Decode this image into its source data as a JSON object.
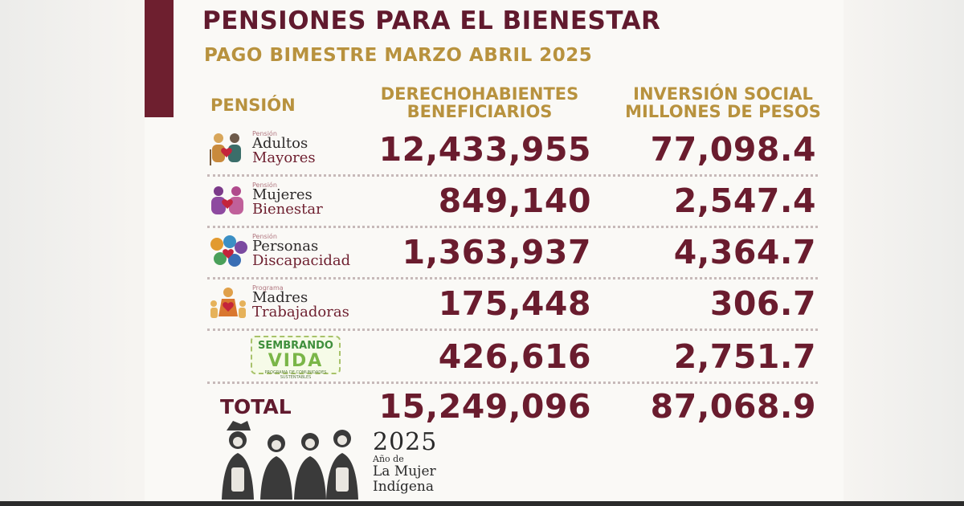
{
  "header": {
    "title": "PENSIONES PARA EL BIENESTAR",
    "subtitle": "PAGO BIMESTRE MARZO ABRIL 2025"
  },
  "columns": {
    "pension": "PENSIÓN",
    "beneficiaries_line1": "DERECHOHABIENTES",
    "beneficiaries_line2": "BENEFICIARIOS",
    "investment_line1": "INVERSIÓN SOCIAL",
    "investment_line2": "MILLONES DE PESOS"
  },
  "rows": [
    {
      "prefix": "Pensión",
      "name_line1": "Adultos",
      "name_line2": "Mayores",
      "icon": "elderly-couple-icon",
      "beneficiaries": "12,433,955",
      "investment": "77,098.4"
    },
    {
      "prefix": "Pensión",
      "name_line1": "Mujeres",
      "name_line2": "Bienestar",
      "icon": "women-icon",
      "beneficiaries": "849,140",
      "investment": "2,547.4"
    },
    {
      "prefix": "Pensión",
      "name_line1": "Personas",
      "name_line2": "Discapacidad",
      "icon": "disability-icon",
      "beneficiaries": "1,363,937",
      "investment": "4,364.7"
    },
    {
      "prefix": "Programa",
      "name_line1": "Madres",
      "name_line2": "Trabajadoras",
      "icon": "mother-children-icon",
      "beneficiaries": "175,448",
      "investment": "306.7"
    },
    {
      "logo_line1": "SEMBRANDO",
      "logo_line2": "VIDA",
      "logo_tagline": "PROGRAMA DE COMUNIDADES SUSTENTABLES",
      "icon": "sembrando-vida-logo",
      "beneficiaries": "426,616",
      "investment": "2,751.7"
    }
  ],
  "total": {
    "label": "TOTAL",
    "beneficiaries": "15,249,096",
    "investment": "87,068.9"
  },
  "footer": {
    "year": "2025",
    "line1": "Año de",
    "line2": "La Mujer",
    "line3": "Indígena"
  },
  "colors": {
    "maroon": "#6a1c2e",
    "gold": "#b8923e"
  }
}
